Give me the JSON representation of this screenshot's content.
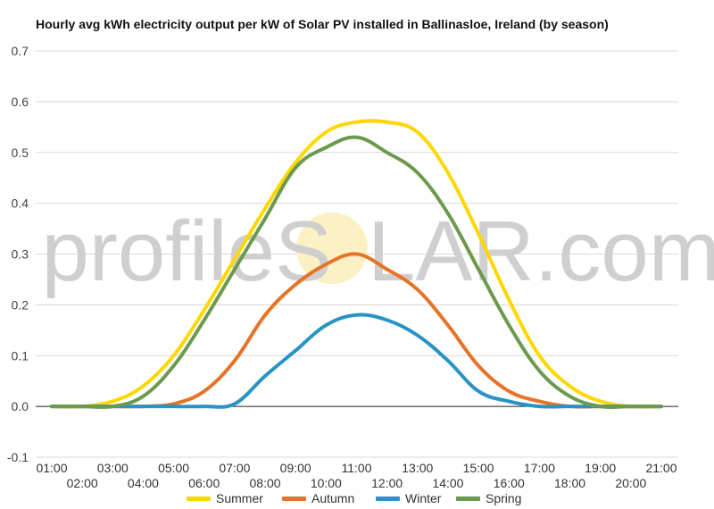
{
  "chart_data": {
    "type": "line",
    "title": "Hourly avg kWh electricity output per kW of Solar PV installed in Ballinasloe, Ireland (by season)",
    "xlabel": "",
    "ylabel": "",
    "ylim": [
      -0.1,
      0.7
    ],
    "yticks": [
      "-0.1",
      "0.0",
      "0.1",
      "0.2",
      "0.3",
      "0.4",
      "0.5",
      "0.6",
      "0.7"
    ],
    "grid": true,
    "legend": "bottom",
    "x": [
      "01:00",
      "02:00",
      "03:00",
      "04:00",
      "05:00",
      "06:00",
      "07:00",
      "08:00",
      "09:00",
      "10:00",
      "11:00",
      "12:00",
      "13:00",
      "14:00",
      "15:00",
      "16:00",
      "17:00",
      "18:00",
      "19:00",
      "20:00",
      "21:00"
    ],
    "series": [
      {
        "name": "Summer",
        "color": "#FFD700",
        "values": [
          0,
          0,
          0.01,
          0.04,
          0.1,
          0.19,
          0.29,
          0.39,
          0.48,
          0.54,
          0.56,
          0.56,
          0.54,
          0.46,
          0.34,
          0.21,
          0.1,
          0.04,
          0.01,
          0,
          0
        ]
      },
      {
        "name": "Autumn",
        "color": "#E67326",
        "values": [
          0,
          0,
          0,
          0,
          0.005,
          0.03,
          0.09,
          0.18,
          0.24,
          0.28,
          0.3,
          0.27,
          0.23,
          0.16,
          0.08,
          0.03,
          0.01,
          0,
          0,
          0,
          0
        ]
      },
      {
        "name": "Winter",
        "color": "#2893C6",
        "values": [
          0,
          0,
          0,
          0,
          0,
          0,
          0.005,
          0.06,
          0.11,
          0.16,
          0.18,
          0.17,
          0.14,
          0.09,
          0.03,
          0.01,
          0,
          0,
          0,
          0,
          0
        ]
      },
      {
        "name": "Spring",
        "color": "#6B9A4E",
        "values": [
          0,
          0,
          0,
          0.02,
          0.08,
          0.17,
          0.27,
          0.37,
          0.47,
          0.51,
          0.53,
          0.5,
          0.46,
          0.38,
          0.27,
          0.16,
          0.07,
          0.02,
          0,
          0,
          0
        ]
      }
    ]
  },
  "watermark": {
    "left": "profileS",
    "right": "LAR.com"
  }
}
